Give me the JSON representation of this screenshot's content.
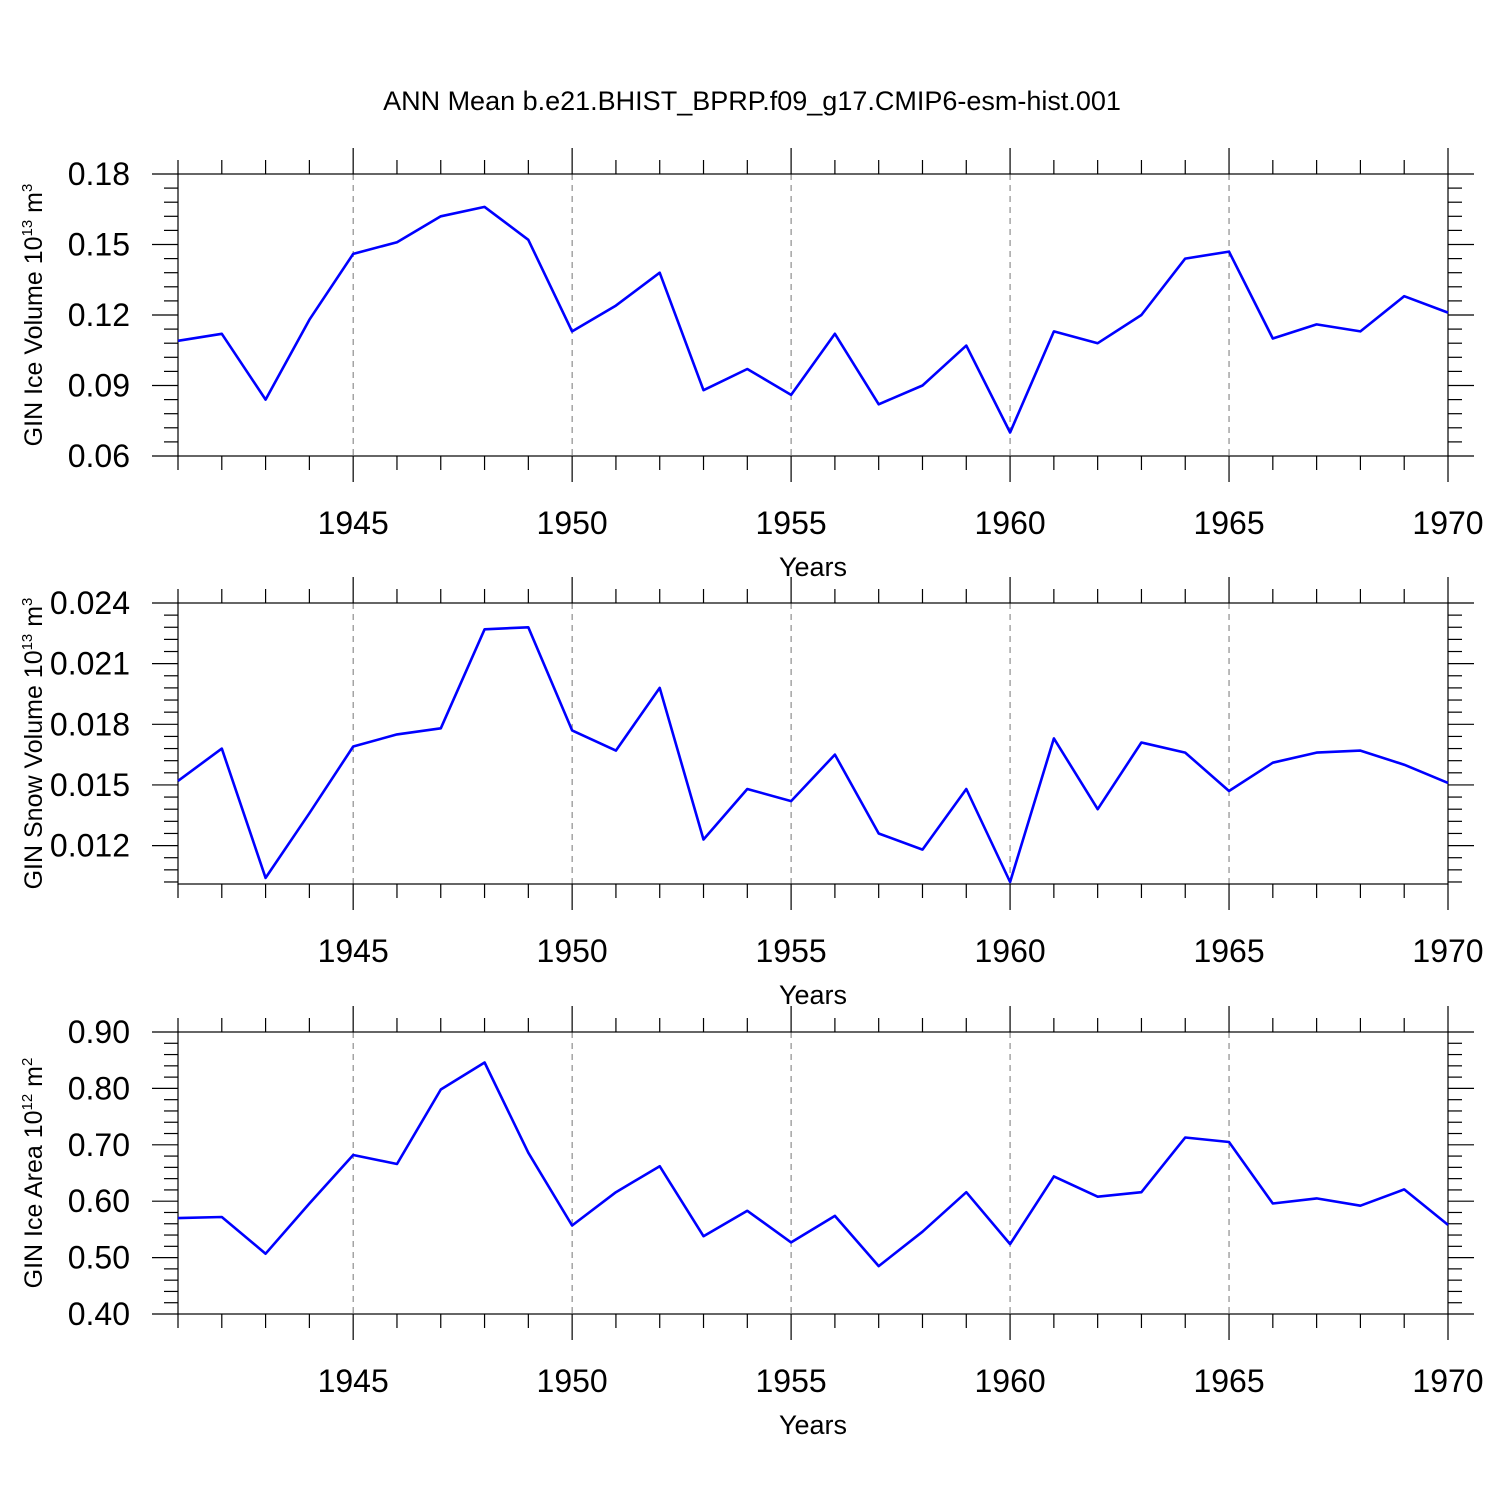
{
  "title": "ANN Mean b.e21.BHIST_BPRP.f09_g17.CMIP6-esm-hist.001",
  "colors": {
    "line": "#0000ff",
    "grid": "#777777",
    "axis": "#000000"
  },
  "chart_data": [
    {
      "type": "line",
      "ylabel": {
        "main": "GIN Ice Volume 10",
        "exp": "13",
        "unit": " m",
        "unit_exp": "3"
      },
      "xlabel": "Years",
      "xlim": [
        1941,
        1970
      ],
      "ylim": [
        0.06,
        0.18
      ],
      "yticks": [
        0.06,
        0.09,
        0.12,
        0.15,
        0.18
      ],
      "ytick_labels": [
        "0.06",
        "0.09",
        "0.12",
        "0.15",
        "0.18"
      ],
      "yminor": [
        0.066,
        0.072,
        0.078,
        0.084,
        0.096,
        0.102,
        0.108,
        0.114,
        0.126,
        0.132,
        0.138,
        0.144,
        0.156,
        0.162,
        0.168,
        0.174
      ],
      "xticks": [
        1945,
        1950,
        1955,
        1960,
        1965,
        1970
      ],
      "xtick_labels": [
        "1945",
        "1950",
        "1955",
        "1960",
        "1965",
        "1970"
      ],
      "grid": "x",
      "x": [
        1941,
        1942,
        1943,
        1944,
        1945,
        1946,
        1947,
        1948,
        1949,
        1950,
        1951,
        1952,
        1953,
        1954,
        1955,
        1956,
        1957,
        1958,
        1959,
        1960,
        1961,
        1962,
        1963,
        1964,
        1965,
        1966,
        1967,
        1968,
        1969,
        1970
      ],
      "values": [
        0.109,
        0.112,
        0.084,
        0.118,
        0.146,
        0.151,
        0.162,
        0.166,
        0.152,
        0.113,
        0.124,
        0.138,
        0.088,
        0.097,
        0.086,
        0.112,
        0.082,
        0.09,
        0.107,
        0.07,
        0.113,
        0.108,
        0.12,
        0.144,
        0.147,
        0.11,
        0.116,
        0.113,
        0.128,
        0.121
      ]
    },
    {
      "type": "line",
      "ylabel": {
        "main": "GIN Snow Volume 10",
        "exp": "13",
        "unit": " m",
        "unit_exp": "3"
      },
      "xlabel": "Years",
      "xlim": [
        1941,
        1970
      ],
      "ylim": [
        0.0101,
        0.024
      ],
      "yticks": [
        0.012,
        0.015,
        0.018,
        0.021,
        0.024
      ],
      "ytick_labels": [
        "0.012",
        "0.015",
        "0.018",
        "0.021",
        "0.024"
      ],
      "yminor": [
        0.0102,
        0.0108,
        0.0114,
        0.0126,
        0.0132,
        0.0138,
        0.0144,
        0.0156,
        0.0162,
        0.0168,
        0.0174,
        0.0186,
        0.0192,
        0.0198,
        0.0204,
        0.0216,
        0.0222,
        0.0228,
        0.0234
      ],
      "xticks": [
        1945,
        1950,
        1955,
        1960,
        1965,
        1970
      ],
      "xtick_labels": [
        "1945",
        "1950",
        "1955",
        "1960",
        "1965",
        "1970"
      ],
      "grid": "x",
      "x": [
        1941,
        1942,
        1943,
        1944,
        1945,
        1946,
        1947,
        1948,
        1949,
        1950,
        1951,
        1952,
        1953,
        1954,
        1955,
        1956,
        1957,
        1958,
        1959,
        1960,
        1961,
        1962,
        1963,
        1964,
        1965,
        1966,
        1967,
        1968,
        1969,
        1970
      ],
      "values": [
        0.0152,
        0.0168,
        0.0104,
        0.0136,
        0.0169,
        0.0175,
        0.0178,
        0.0227,
        0.0228,
        0.0177,
        0.0167,
        0.0198,
        0.0123,
        0.0148,
        0.0142,
        0.0165,
        0.0126,
        0.0118,
        0.0148,
        0.0102,
        0.0173,
        0.0138,
        0.0171,
        0.0166,
        0.0147,
        0.0161,
        0.0166,
        0.0167,
        0.016,
        0.0151
      ]
    },
    {
      "type": "line",
      "ylabel": {
        "main": "GIN Ice Area 10",
        "exp": "12",
        "unit": " m",
        "unit_exp": "2"
      },
      "xlabel": "Years",
      "xlim": [
        1941,
        1970
      ],
      "ylim": [
        0.4,
        0.9
      ],
      "yticks": [
        0.4,
        0.5,
        0.6,
        0.7,
        0.8,
        0.9
      ],
      "ytick_labels": [
        "0.40",
        "0.50",
        "0.60",
        "0.70",
        "0.80",
        "0.90"
      ],
      "yminor": [
        0.42,
        0.44,
        0.46,
        0.48,
        0.52,
        0.54,
        0.56,
        0.58,
        0.62,
        0.64,
        0.66,
        0.68,
        0.72,
        0.74,
        0.76,
        0.78,
        0.82,
        0.84,
        0.86,
        0.88
      ],
      "xticks": [
        1945,
        1950,
        1955,
        1960,
        1965,
        1970
      ],
      "xtick_labels": [
        "1945",
        "1950",
        "1955",
        "1960",
        "1965",
        "1970"
      ],
      "grid": "x",
      "x": [
        1941,
        1942,
        1943,
        1944,
        1945,
        1946,
        1947,
        1948,
        1949,
        1950,
        1951,
        1952,
        1953,
        1954,
        1955,
        1956,
        1957,
        1958,
        1959,
        1960,
        1961,
        1962,
        1963,
        1964,
        1965,
        1966,
        1967,
        1968,
        1969,
        1970
      ],
      "values": [
        0.57,
        0.572,
        0.507,
        0.596,
        0.682,
        0.666,
        0.798,
        0.846,
        0.686,
        0.557,
        0.616,
        0.662,
        0.538,
        0.583,
        0.527,
        0.574,
        0.485,
        0.546,
        0.616,
        0.524,
        0.644,
        0.608,
        0.616,
        0.713,
        0.705,
        0.596,
        0.605,
        0.592,
        0.621,
        0.558
      ]
    }
  ]
}
